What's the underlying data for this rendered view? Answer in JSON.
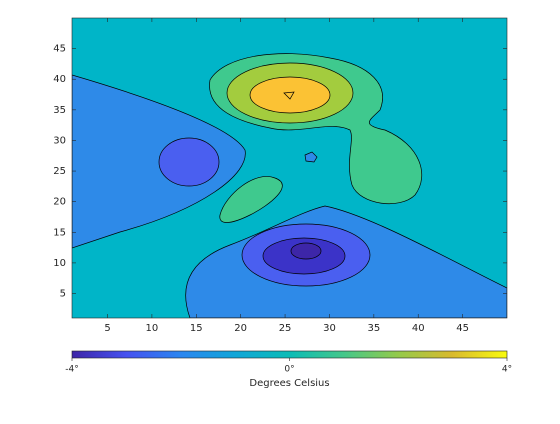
{
  "chart_data": {
    "type": "contour",
    "xlim": [
      1,
      50
    ],
    "ylim": [
      1,
      50
    ],
    "xticks": [
      5,
      10,
      15,
      20,
      25,
      30,
      35,
      40,
      45
    ],
    "yticks": [
      5,
      10,
      15,
      20,
      25,
      30,
      35,
      40,
      45
    ],
    "levels": [
      -4,
      -3,
      -2,
      -1,
      0,
      1,
      2,
      3
    ],
    "colors": [
      "#3d26a8",
      "#3b33c8",
      "#4a5ff0",
      "#2e8ae8",
      "#00b5c8",
      "#3fc98e",
      "#a3cc3e",
      "#fbc234"
    ],
    "colorbar": {
      "label": "Degrees Celsius",
      "lim": [
        -4,
        4
      ],
      "ticks": [
        {
          "value": -4,
          "label": "-4°"
        },
        {
          "value": 0,
          "label": "0°"
        },
        {
          "value": 4,
          "label": "4°"
        }
      ],
      "colormap": [
        "#3e26a8",
        "#4652f0",
        "#2b86f0",
        "#11a6d8",
        "#0bbcb6",
        "#45c78a",
        "#94ca4a",
        "#d9ba2e",
        "#f9fb0e"
      ]
    }
  }
}
